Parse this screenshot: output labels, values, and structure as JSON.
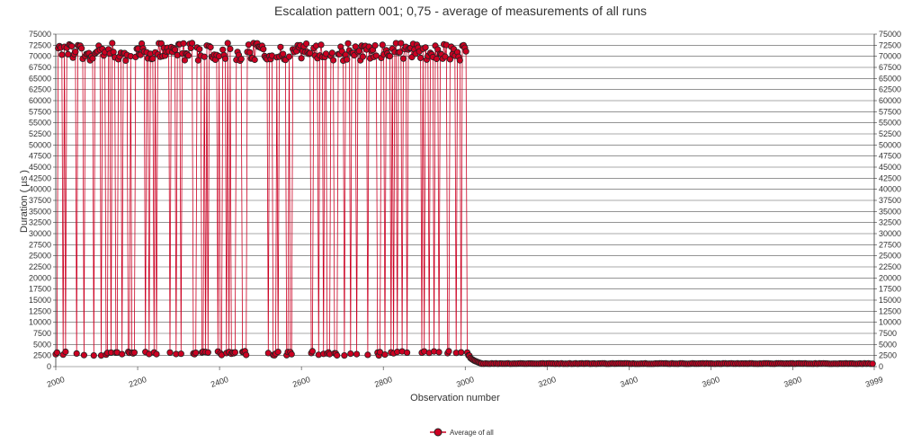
{
  "chart_data": {
    "type": "line",
    "title": "Escalation pattern 001; 0,75 - average of measurements of all runs",
    "xlabel": "Observation number",
    "ylabel": "Duration ( µs )",
    "xlim": [
      2000,
      3999
    ],
    "ylim": [
      0,
      75000
    ],
    "x_ticks": [
      "2000",
      "2200",
      "2400",
      "2600",
      "2800",
      "3000",
      "3200",
      "3400",
      "3600",
      "3800",
      "3999"
    ],
    "y_ticks": [
      "0",
      "2500",
      "5000",
      "7500",
      "10000",
      "12500",
      "15000",
      "17500",
      "20000",
      "22500",
      "25000",
      "27500",
      "30000",
      "32500",
      "35000",
      "37500",
      "40000",
      "42500",
      "45000",
      "47500",
      "50000",
      "52500",
      "55000",
      "57500",
      "60000",
      "62500",
      "65000",
      "67500",
      "70000",
      "72500",
      "75000"
    ],
    "grid": true,
    "legend_position": "bottom-center",
    "colors": {
      "series": "#cc0022",
      "marker_edge": "#222222",
      "grid": "#000000"
    },
    "series": [
      {
        "name": "Average of all",
        "approx": true,
        "phases": [
          {
            "x_start": 2000,
            "x_end": 3010,
            "pattern": "oscillating",
            "high_range": [
              69000,
              73000
            ],
            "low_range": [
              2500,
              3500
            ]
          },
          {
            "x_start": 3010,
            "x_end": 3040,
            "pattern": "decay",
            "from": 2500,
            "to": 700
          },
          {
            "x_start": 3040,
            "x_end": 3999,
            "pattern": "flat",
            "value": 700
          }
        ]
      }
    ]
  }
}
